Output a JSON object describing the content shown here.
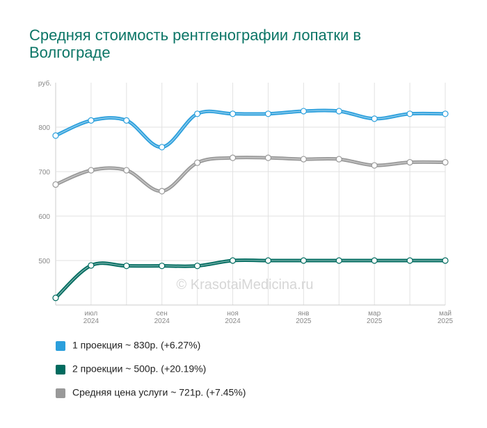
{
  "chart_data": {
    "type": "line",
    "title": "Средняя стоимость рентгенографии лопатки в Волгограде",
    "y_label": "руб.",
    "watermark": "© KrasotaiMedicina.ru",
    "categories": [
      null,
      "июл 2024",
      null,
      "сен 2024",
      null,
      "ноя 2024",
      null,
      "янв 2025",
      null,
      "мар 2025",
      null,
      "май 2025"
    ],
    "series": [
      {
        "name": "1 проекция ~ 830р. (+6.27%)",
        "color": "#2b9fdc",
        "values": [
          781,
          815,
          815,
          755,
          830,
          830,
          830,
          836,
          836,
          819,
          830,
          830
        ]
      },
      {
        "name": "2 проекции ~ 500р. (+20.19%)",
        "color": "#006b5f",
        "values": [
          416,
          489,
          488,
          488,
          488,
          500,
          500,
          500,
          500,
          500,
          500,
          500
        ]
      },
      {
        "name": "Средняя цена услуги ~ 721р. (+7.45%)",
        "color": "#999999",
        "values": [
          671,
          703,
          703,
          656,
          720,
          731,
          731,
          728,
          728,
          714,
          721,
          721
        ]
      }
    ],
    "ylim": [
      400,
      900
    ],
    "yticks": [
      500,
      600,
      700,
      800
    ],
    "grid": true
  }
}
